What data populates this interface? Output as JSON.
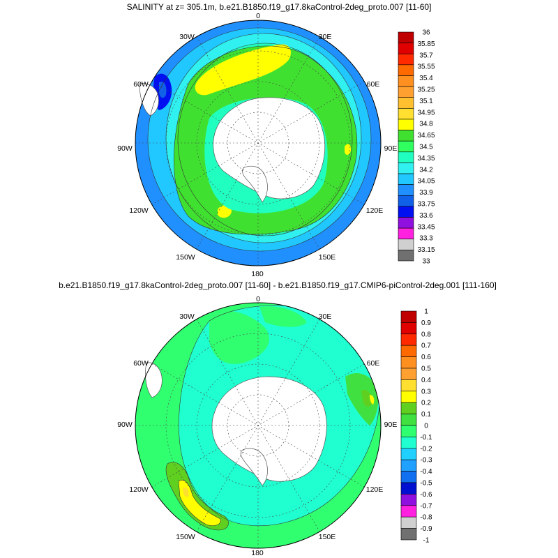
{
  "panels": [
    {
      "title": "SALINITY at z= 305.1m, b.e21.B1850.f19_g17.8kaControl-2deg_proto.007 [11-60]",
      "lon_labels": [
        "0",
        "30E",
        "60E",
        "90E",
        "120E",
        "150E",
        "180",
        "150W",
        "120W",
        "90W",
        "60W",
        "30W"
      ],
      "colorbar": {
        "labels": [
          "36",
          "35.85",
          "35.7",
          "35.55",
          "35.4",
          "35.25",
          "35.1",
          "34.95",
          "34.8",
          "34.65",
          "34.5",
          "34.35",
          "34.2",
          "34.05",
          "33.9",
          "33.75",
          "33.6",
          "33.45",
          "33.3",
          "33.15",
          "33"
        ],
        "colors": [
          "#c00000",
          "#e00000",
          "#ff2a00",
          "#ff6a00",
          "#ff9020",
          "#ffa030",
          "#ffc030",
          "#ffe030",
          "#ffff00",
          "#40e030",
          "#30ff60",
          "#20ffc0",
          "#30f0f0",
          "#20c8ff",
          "#2090ff",
          "#1060e8",
          "#0010f0",
          "#9010e0",
          "#ff20e0",
          "#d0d0d0",
          "#707070"
        ]
      }
    },
    {
      "title": "b.e21.B1850.f19_g17.8kaControl-2deg_proto.007 [11-60] - b.e21.B1850.f19_g17.CMIP6-piControl-2deg.001 [111-160]",
      "lon_labels": [
        "0",
        "30E",
        "60E",
        "90E",
        "120E",
        "150E",
        "180",
        "150W",
        "120W",
        "90W",
        "60W",
        "30W"
      ],
      "colorbar": {
        "labels": [
          "1",
          "0.9",
          "0.8",
          "0.7",
          "0.6",
          "0.5",
          "0.4",
          "0.3",
          "0.2",
          "0.1",
          "0",
          "-0.1",
          "-0.2",
          "-0.3",
          "-0.4",
          "-0.5",
          "-0.6",
          "-0.7",
          "-0.8",
          "-0.9",
          "-1"
        ],
        "colors": [
          "#c00000",
          "#e00000",
          "#ff2a00",
          "#ff6a00",
          "#ff9020",
          "#ffa030",
          "#ffe030",
          "#ffff00",
          "#60d020",
          "#40e040",
          "#30ff70",
          "#20ffd0",
          "#20d0ff",
          "#20a0ff",
          "#1070f0",
          "#0010d0",
          "#9010e0",
          "#ff20e0",
          "#d0d0d0",
          "#707070"
        ]
      }
    }
  ]
}
